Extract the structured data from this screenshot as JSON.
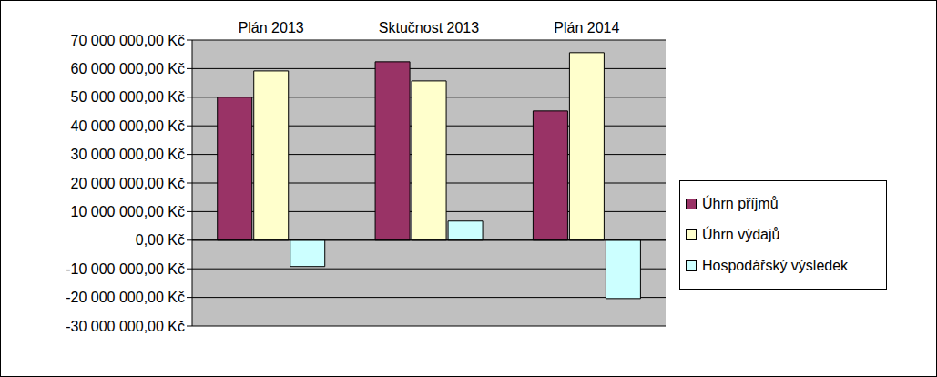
{
  "chart_data": {
    "type": "bar",
    "categories": [
      "Plán 2013",
      "Sktučnost 2013",
      "Plán 2014"
    ],
    "series": [
      {
        "name": "Úhrn příjmů",
        "color": "#993366",
        "values": [
          50000000,
          62400000,
          45200000
        ]
      },
      {
        "name": "Úhrn výdajů",
        "color": "#ffffcc",
        "values": [
          59200000,
          55700000,
          65600000
        ]
      },
      {
        "name": "Hospodářský výsledek",
        "color": "#ccffff",
        "values": [
          -9200000,
          6700000,
          -20400000
        ]
      }
    ],
    "ylim": [
      -30000000,
      70000000
    ],
    "yticks": [
      {
        "value": -30000000,
        "label": "-30 000 000,00 Kč"
      },
      {
        "value": -20000000,
        "label": "-20 000 000,00 Kč"
      },
      {
        "value": -10000000,
        "label": "-10 000 000,00 Kč"
      },
      {
        "value": 0,
        "label": "0,00 Kč"
      },
      {
        "value": 10000000,
        "label": "10 000 000,00 Kč"
      },
      {
        "value": 20000000,
        "label": "20 000 000,00 Kč"
      },
      {
        "value": 30000000,
        "label": "30 000 000,00 Kč"
      },
      {
        "value": 40000000,
        "label": "40 000 000,00 Kč"
      },
      {
        "value": 50000000,
        "label": "50 000 000,00 Kč"
      },
      {
        "value": 60000000,
        "label": "60 000 000,00 Kč"
      },
      {
        "value": 70000000,
        "label": "70 000 000,00 Kč"
      }
    ],
    "grid": true,
    "legend": "right"
  }
}
